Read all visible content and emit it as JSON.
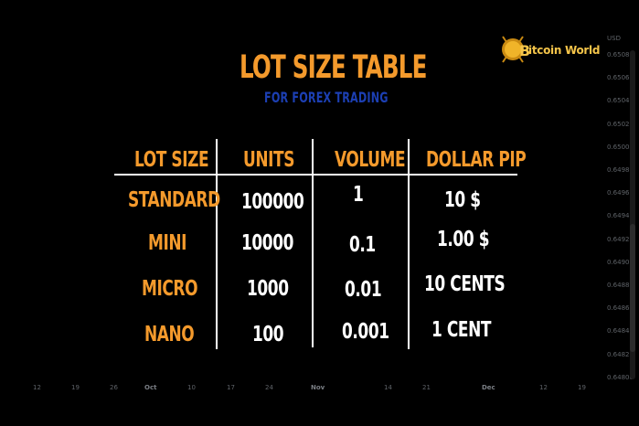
{
  "title": "LOT SIZE TABLE",
  "subtitle": "FOR FOREX TRADING",
  "logo": {
    "text": "itcoin World",
    "letter": "B",
    "icon": "bitcoin-coin-icon"
  },
  "table": {
    "headers": [
      "LOT SIZE",
      "UNITS",
      "VOLUME",
      "DOLLAR PIP"
    ],
    "rows": [
      {
        "label": "STANDARD",
        "units": "100000",
        "volume": "1",
        "pip": "10 $"
      },
      {
        "label": "MINI",
        "units": "10000",
        "volume": "0.1",
        "pip": "1.00 $"
      },
      {
        "label": "MICRO",
        "units": "1000",
        "volume": "0.01",
        "pip": "10 CENTS"
      },
      {
        "label": "NANO",
        "units": "100",
        "volume": "0.001",
        "pip": "1 CENT"
      }
    ]
  },
  "price_axis": {
    "currency": "USD",
    "ticks": [
      "0.65080",
      "0.65060",
      "0.65040",
      "0.65020",
      "0.65000",
      "0.64980",
      "0.64960",
      "0.64940",
      "0.64920",
      "0.64900",
      "0.64880",
      "0.64860",
      "0.64840",
      "0.64820",
      "0.64800"
    ]
  },
  "time_axis": {
    "ticks": [
      {
        "label": "12",
        "bold": false
      },
      {
        "label": "19",
        "bold": false
      },
      {
        "label": "26",
        "bold": false
      },
      {
        "label": "Oct",
        "bold": true
      },
      {
        "label": "10",
        "bold": false
      },
      {
        "label": "17",
        "bold": false
      },
      {
        "label": "24",
        "bold": false
      },
      {
        "label": "Nov",
        "bold": true
      },
      {
        "label": "14",
        "bold": false
      },
      {
        "label": "21",
        "bold": false
      },
      {
        "label": "Dec",
        "bold": true
      },
      {
        "label": "12",
        "bold": false
      },
      {
        "label": "19",
        "bold": false
      }
    ]
  },
  "colors": {
    "accent": "#f49a2c",
    "subtitle": "#1c3fb3",
    "text": "#ffffff",
    "axis": "#5f6368",
    "logo": "#f5c54a"
  }
}
